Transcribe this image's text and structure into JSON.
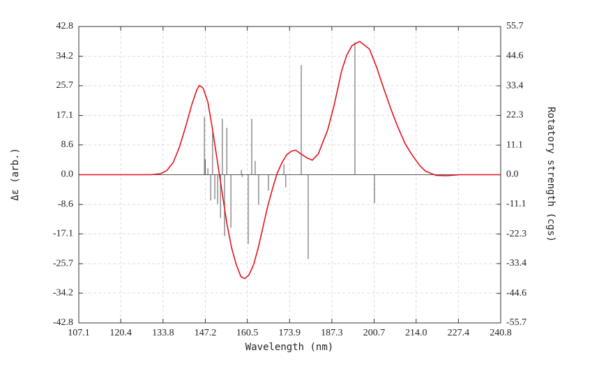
{
  "chart_data": {
    "type": "line",
    "xlabel": "Wavelength (nm)",
    "ylabel": "Δε (arb.)",
    "y2label": "Rotatory strength (cgs)",
    "xlim": [
      107.1,
      240.8
    ],
    "xticks": [
      107.1,
      120.4,
      133.8,
      147.2,
      160.5,
      173.9,
      187.3,
      200.7,
      {
        "value": 214,
        "label": "214.0"
      },
      227.4,
      240.8
    ],
    "ylim": [
      -42.8,
      42.8
    ],
    "yticks": [
      42.8,
      34.2,
      25.7,
      17.1,
      8.6,
      {
        "value": 0,
        "label": "0.0"
      },
      -8.6,
      -17.1,
      -25.7,
      -34.2,
      -42.8
    ],
    "y2lim": [
      -55.7,
      55.7
    ],
    "y2ticks": [
      55.7,
      44.6,
      33.4,
      22.3,
      11.1,
      {
        "value": 0,
        "label": "0.0"
      },
      -11.1,
      -22.3,
      -33.4,
      -44.6,
      -55.7
    ],
    "grid": true,
    "series": [
      {
        "type": "line",
        "color": "#e8101a",
        "x": [
          107.1,
          130,
          133,
          135,
          137,
          139,
          141,
          143,
          144.5,
          145.3,
          146.5,
          148,
          149.5,
          151,
          152.5,
          154,
          155.5,
          157,
          158.5,
          159.7,
          161,
          162.5,
          164,
          165.5,
          167,
          168.5,
          170,
          171.5,
          173,
          174.5,
          175.8,
          177.5,
          179.5,
          181.1,
          183,
          186,
          188,
          190.4,
          192,
          193.7,
          196.1,
          199.2,
          201.5,
          203.7,
          206,
          208.1,
          210.5,
          212.5,
          215,
          217,
          220.3,
          223.6,
          228,
          240.8
        ],
        "values": [
          0,
          0,
          0.3,
          1.2,
          3.5,
          8,
          14,
          20.5,
          24.5,
          25.8,
          25,
          21,
          13,
          4,
          -5,
          -14,
          -21,
          -26,
          -29.5,
          -30,
          -29,
          -26,
          -21,
          -15,
          -9,
          -4,
          0.5,
          3.5,
          5.8,
          6.8,
          7.1,
          6,
          4.8,
          4.2,
          6,
          13,
          20,
          30,
          34.5,
          37.3,
          38.5,
          36.3,
          31,
          25,
          19,
          14,
          9,
          6,
          2.8,
          1,
          -0.2,
          -0.3,
          0,
          0
        ]
      },
      {
        "type": "stick",
        "color": "#555555",
        "axis": "y2",
        "x": [
          146.9,
          147.2,
          148.0,
          148.9,
          149.5,
          150.2,
          151.1,
          152.0,
          152.6,
          153.3,
          154.0,
          155.3,
          158.6,
          158.9,
          160.8,
          161.9,
          163.0,
          164.1,
          167.2,
          172.1,
          172.7,
          177.6,
          179.8,
          194.6,
          200.8
        ],
        "values": [
          21.8,
          5.8,
          2.4,
          -9.7,
          16.3,
          -9.2,
          -11.0,
          -16.3,
          21.0,
          -23.1,
          17.6,
          -19.9,
          1.8,
          -0.8,
          -26.0,
          21.0,
          5.2,
          -11.3,
          -6.0,
          3.9,
          -4.7,
          41.2,
          -31.7,
          49.8,
          -10.7
        ]
      }
    ]
  }
}
